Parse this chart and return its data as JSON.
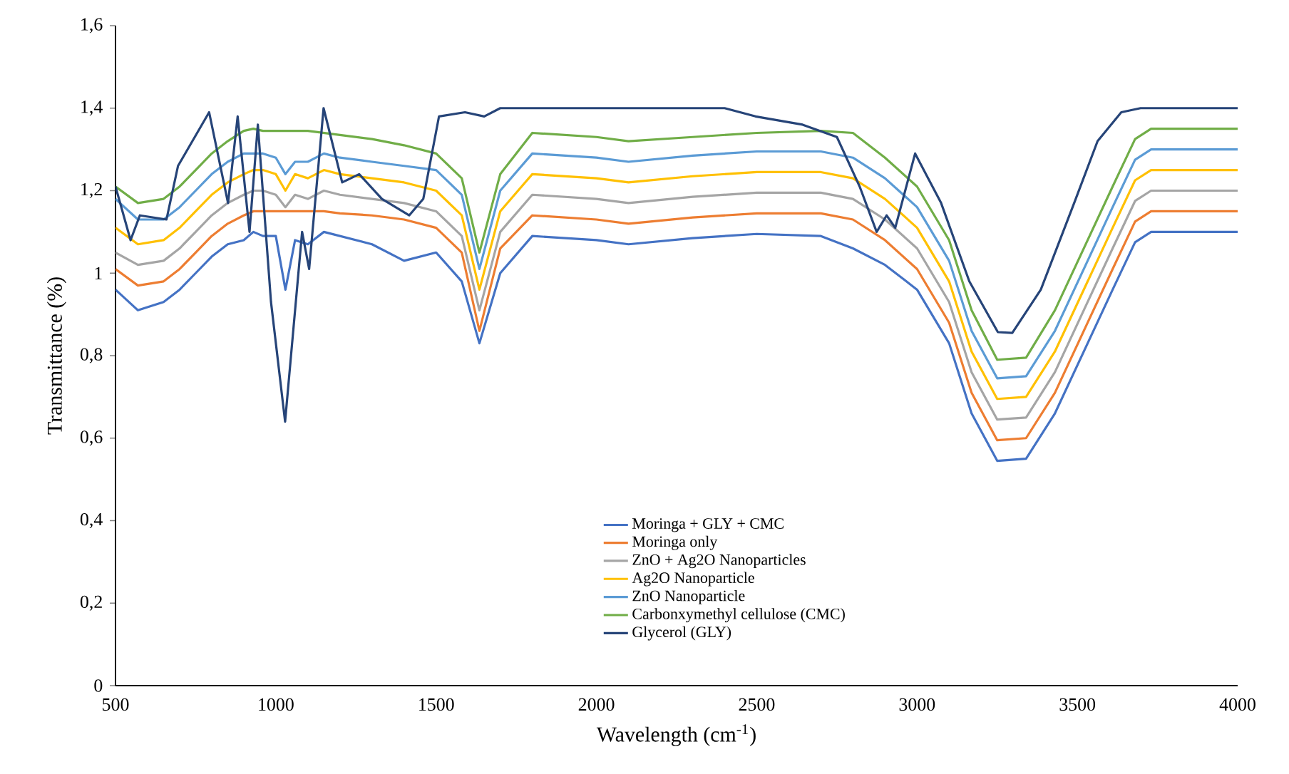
{
  "chart_data": {
    "type": "line",
    "xlabel": "Wavelength (cm$^{-1}$)",
    "ylabel": "Transmittance (%)",
    "x": [
      500,
      570,
      650,
      700,
      750,
      800,
      850,
      900,
      930,
      960,
      1000,
      1030,
      1060,
      1100,
      1150,
      1200,
      1300,
      1400,
      1500,
      1580,
      1635,
      1700,
      1800,
      2000,
      2100,
      2300,
      2500,
      2700,
      2800,
      2900,
      3000,
      3100,
      3170,
      3250,
      3340,
      3430,
      3520,
      3610,
      3680,
      3730,
      4000
    ],
    "xlim": [
      500,
      4000
    ],
    "xticks": [
      500,
      1000,
      1500,
      2000,
      2500,
      3000,
      3500,
      4000
    ],
    "ylim": [
      0,
      1.6
    ],
    "yticks": [
      0,
      {
        "value": 0.2,
        "label": "0,2"
      },
      {
        "value": 0.4,
        "label": "0,4"
      },
      {
        "value": 0.6,
        "label": "0,6"
      },
      {
        "value": 0.8,
        "label": "0,8"
      },
      1,
      {
        "value": 1.2,
        "label": "1,2"
      },
      {
        "value": 1.4,
        "label": "1,4"
      },
      {
        "value": 1.6,
        "label": "1,6"
      }
    ],
    "legend": "bottom",
    "series": [
      {
        "name": "Moringa + GLY + CMC",
        "color": "#4472c4",
        "values": [
          0.96,
          0.91,
          0.93,
          0.96,
          1.0,
          1.04,
          1.07,
          1.08,
          1.1,
          1.09,
          1.09,
          0.96,
          1.08,
          1.07,
          1.1,
          1.09,
          1.07,
          1.03,
          1.05,
          0.98,
          0.83,
          1.0,
          1.09,
          1.08,
          1.07,
          1.085,
          1.095,
          1.09,
          1.06,
          1.02,
          0.96,
          0.83,
          0.66,
          0.545,
          0.55,
          0.66,
          0.81,
          0.96,
          1.075,
          1.1,
          1.1
        ]
      },
      {
        "name": "Moringa only",
        "color": "#ed7d31",
        "values": [
          1.01,
          0.97,
          0.98,
          1.01,
          1.05,
          1.09,
          1.12,
          1.14,
          1.15,
          1.15,
          1.15,
          1.15,
          1.15,
          1.15,
          1.15,
          1.145,
          1.14,
          1.13,
          1.11,
          1.05,
          0.86,
          1.06,
          1.14,
          1.13,
          1.12,
          1.135,
          1.145,
          1.145,
          1.13,
          1.08,
          1.01,
          0.88,
          0.71,
          0.595,
          0.6,
          0.71,
          0.86,
          1.01,
          1.125,
          1.15,
          1.15
        ]
      },
      {
        "name": "ZnO + Ag2O Nanoparticles",
        "color": "#a5a5a5",
        "values": [
          1.05,
          1.02,
          1.03,
          1.06,
          1.1,
          1.14,
          1.17,
          1.19,
          1.2,
          1.2,
          1.19,
          1.16,
          1.19,
          1.18,
          1.2,
          1.19,
          1.18,
          1.17,
          1.15,
          1.09,
          0.91,
          1.1,
          1.19,
          1.18,
          1.17,
          1.185,
          1.195,
          1.195,
          1.18,
          1.13,
          1.06,
          0.93,
          0.76,
          0.645,
          0.65,
          0.76,
          0.91,
          1.06,
          1.175,
          1.2,
          1.2
        ]
      },
      {
        "name": "Ag2O Nanoparticle",
        "color": "#ffc000",
        "values": [
          1.11,
          1.07,
          1.08,
          1.11,
          1.15,
          1.19,
          1.22,
          1.24,
          1.25,
          1.25,
          1.24,
          1.2,
          1.24,
          1.23,
          1.25,
          1.24,
          1.23,
          1.22,
          1.2,
          1.14,
          0.96,
          1.15,
          1.24,
          1.23,
          1.22,
          1.235,
          1.245,
          1.245,
          1.23,
          1.18,
          1.11,
          0.98,
          0.81,
          0.695,
          0.7,
          0.81,
          0.96,
          1.11,
          1.225,
          1.25,
          1.25
        ]
      },
      {
        "name": "ZnO Nanoparticle",
        "color": "#5b9bd5",
        "values": [
          1.18,
          1.13,
          1.13,
          1.16,
          1.2,
          1.24,
          1.27,
          1.29,
          1.29,
          1.29,
          1.28,
          1.24,
          1.27,
          1.27,
          1.29,
          1.28,
          1.27,
          1.26,
          1.25,
          1.19,
          1.01,
          1.2,
          1.29,
          1.28,
          1.27,
          1.285,
          1.295,
          1.295,
          1.28,
          1.23,
          1.16,
          1.03,
          0.86,
          0.745,
          0.75,
          0.86,
          1.01,
          1.16,
          1.275,
          1.3,
          1.3
        ]
      },
      {
        "name": "Carbonxymethyl cellulose (CMC)",
        "color": "#70ad47",
        "values": [
          1.21,
          1.17,
          1.18,
          1.21,
          1.25,
          1.29,
          1.32,
          1.345,
          1.35,
          1.345,
          1.345,
          1.345,
          1.345,
          1.345,
          1.34,
          1.335,
          1.325,
          1.31,
          1.29,
          1.23,
          1.05,
          1.24,
          1.34,
          1.33,
          1.32,
          1.33,
          1.34,
          1.345,
          1.34,
          1.28,
          1.21,
          1.08,
          0.91,
          0.79,
          0.795,
          0.91,
          1.06,
          1.21,
          1.325,
          1.35,
          1.35
        ]
      },
      {
        "name": "Glycerol (GLY)",
        "color": "#264478",
        "x": [
          500,
          547,
          576,
          659,
          695,
          792,
          851,
          881,
          918,
          944,
          985,
          1029,
          1082,
          1104,
          1149,
          1207,
          1260,
          1331,
          1416,
          1460,
          1509,
          1590,
          1650,
          1700,
          2000,
          2400,
          2496,
          2643,
          2750,
          2821,
          2874,
          2905,
          2932,
          2994,
          3075,
          3163,
          3252,
          3297,
          3386,
          3490,
          3563,
          3637,
          3697,
          4000
        ],
        "values": [
          1.21,
          1.08,
          1.14,
          1.13,
          1.26,
          1.39,
          1.17,
          1.38,
          1.1,
          1.36,
          0.93,
          0.64,
          1.1,
          1.01,
          1.4,
          1.22,
          1.24,
          1.18,
          1.14,
          1.18,
          1.38,
          1.39,
          1.38,
          1.4,
          1.4,
          1.4,
          1.38,
          1.36,
          1.33,
          1.21,
          1.1,
          1.14,
          1.11,
          1.29,
          1.17,
          0.98,
          0.857,
          0.855,
          0.96,
          1.17,
          1.32,
          1.39,
          1.4,
          1.4
        ]
      }
    ]
  }
}
